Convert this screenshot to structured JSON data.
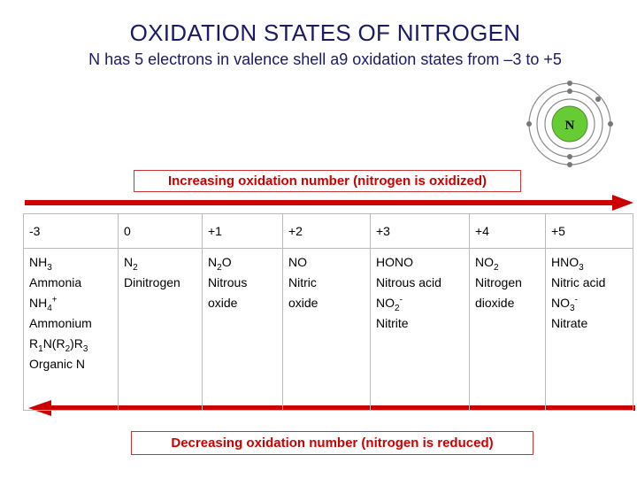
{
  "title": "OXIDATION STATES OF NITROGEN",
  "subtitle": {
    "prefix": "N has 5 electrons in valence shell ",
    "arrow": "a",
    "suffix": "9 oxidation states from –3 to +5"
  },
  "atom": {
    "symbol": "N"
  },
  "increasing_label": "Increasing oxidation number (nitrogen is oxidized)",
  "decreasing_label": "Decreasing oxidation number (nitrogen is reduced)",
  "colors": {
    "arrow": "#cc0000",
    "title": "#1a1a66",
    "label": "#cc0000"
  },
  "table": {
    "states": [
      "-3",
      "0",
      "+1",
      "+2",
      "+3",
      "+4",
      "+5"
    ],
    "col0": {
      "l1a": "NH",
      "l1s": "3",
      "l2": "Ammonia",
      "l3a": "NH",
      "l3s": "4",
      "l3p": "+",
      "l4": "Ammonium",
      "l5a": "R",
      "l5b": "1",
      "l5c": "N(R",
      "l5d": "2",
      "l5e": ")R",
      "l5f": "3",
      "l6": "Organic N"
    },
    "col1": {
      "l1a": "N",
      "l1s": "2",
      "l2": "Dinitrogen"
    },
    "col2": {
      "l1a": "N",
      "l1s": "2",
      "l1b": "O",
      "l2": "Nitrous",
      "l3": "oxide"
    },
    "col3": {
      "l1": "NO",
      "l2": "Nitric",
      "l3": "oxide"
    },
    "col4": {
      "l1": "HONO",
      "l2": "Nitrous acid",
      "l3a": "NO",
      "l3s": "2",
      "l3p": "-",
      "l4": "Nitrite"
    },
    "col5": {
      "l1a": "NO",
      "l1s": "2",
      "l2": "Nitrogen",
      "l3": "dioxide"
    },
    "col6": {
      "l1a": "HNO",
      "l1s": "3",
      "l2": "Nitric acid",
      "l3a": "NO",
      "l3s": "3",
      "l3p": "-",
      "l4": "Nitrate"
    }
  }
}
